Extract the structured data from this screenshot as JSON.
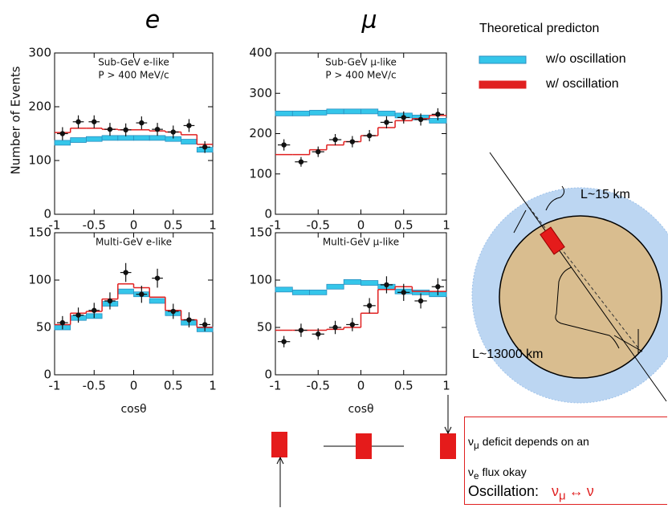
{
  "column_titles": [
    "e",
    "μ"
  ],
  "legend_title": "Theoretical predicton",
  "chart_data": [
    {
      "type": "histogram",
      "title": "Sub-GeV e-like",
      "subtitle": "P > 400 MeV/c",
      "ylabel": "Number of Events",
      "bins": [
        -1,
        -0.8,
        -0.6,
        -0.4,
        -0.2,
        0,
        0.2,
        0.4,
        0.6,
        0.8,
        1
      ],
      "xlim": [
        -1,
        1
      ],
      "xticks": [
        -1,
        -0.5,
        0,
        0.5,
        1
      ],
      "ylim": [
        0,
        300
      ],
      "yticks": [
        0,
        100,
        200,
        300
      ],
      "series": [
        {
          "name": "w/o oscillation",
          "color": "#35c6ea",
          "style": "band",
          "values": [
            133,
            138,
            140,
            142,
            142,
            142,
            142,
            140,
            135,
            120
          ]
        },
        {
          "name": "w/ oscillation",
          "color": "#e02020",
          "style": "line",
          "values": [
            152,
            160,
            160,
            158,
            157,
            157,
            155,
            153,
            148,
            130
          ]
        }
      ],
      "points": {
        "color": "#111111",
        "values": [
          150,
          172,
          172,
          158,
          157,
          170,
          158,
          153,
          165,
          125
        ],
        "errors": [
          12,
          12,
          12,
          12,
          12,
          12,
          12,
          12,
          12,
          11
        ]
      }
    },
    {
      "type": "histogram",
      "title": "Sub-GeV μ-like",
      "subtitle": "P > 400 MeV/c",
      "bins": [
        -1,
        -0.8,
        -0.6,
        -0.4,
        -0.2,
        0,
        0.2,
        0.4,
        0.6,
        0.8,
        1
      ],
      "xlim": [
        -1,
        1
      ],
      "xticks": [
        -1,
        -0.5,
        0,
        0.5,
        1
      ],
      "ylim": [
        0,
        400
      ],
      "yticks": [
        0,
        100,
        200,
        300,
        400
      ],
      "series": [
        {
          "name": "w/o oscillation",
          "color": "#35c6ea",
          "style": "band",
          "values": [
            250,
            250,
            252,
            255,
            255,
            255,
            250,
            245,
            240,
            232
          ]
        },
        {
          "name": "w/ oscillation",
          "color": "#e02020",
          "style": "line",
          "values": [
            148,
            148,
            160,
            172,
            180,
            195,
            215,
            232,
            237,
            245
          ]
        }
      ],
      "points": {
        "color": "#111111",
        "values": [
          172,
          130,
          155,
          185,
          180,
          195,
          228,
          240,
          235,
          248
        ],
        "errors": [
          14,
          12,
          13,
          14,
          14,
          14,
          15,
          15,
          15,
          15
        ]
      }
    },
    {
      "type": "histogram",
      "title": "Multi-GeV e-like",
      "xlabel": "cosθ",
      "bins": [
        -1,
        -0.8,
        -0.6,
        -0.4,
        -0.2,
        0,
        0.2,
        0.4,
        0.6,
        0.8,
        1
      ],
      "xlim": [
        -1,
        1
      ],
      "xticks": [
        -1,
        -0.5,
        0,
        0.5,
        1
      ],
      "ylim": [
        0,
        150
      ],
      "yticks": [
        0,
        50,
        100,
        150
      ],
      "series": [
        {
          "name": "w/o oscillation",
          "color": "#35c6ea",
          "style": "band",
          "values": [
            50,
            60,
            62,
            75,
            88,
            85,
            78,
            65,
            55,
            48
          ]
        },
        {
          "name": "w/ oscillation",
          "color": "#e02020",
          "style": "line",
          "values": [
            53,
            65,
            67,
            80,
            96,
            92,
            82,
            68,
            58,
            50
          ]
        }
      ],
      "points": {
        "color": "#111111",
        "values": [
          55,
          63,
          68,
          78,
          108,
          85,
          102,
          67,
          58,
          53
        ],
        "errors": [
          7,
          8,
          8,
          9,
          10,
          9,
          10,
          8,
          8,
          7
        ]
      }
    },
    {
      "type": "histogram",
      "title": "Multi-GeV μ-like",
      "xlabel": "cosθ",
      "bins": [
        -1,
        -0.8,
        -0.6,
        -0.4,
        -0.2,
        0,
        0.2,
        0.4,
        0.6,
        0.8,
        1
      ],
      "xlim": [
        -1,
        1
      ],
      "xticks": [
        -1,
        -0.5,
        0,
        0.5,
        1
      ],
      "ylim": [
        0,
        150
      ],
      "yticks": [
        0,
        50,
        100,
        150
      ],
      "series": [
        {
          "name": "w/o oscillation",
          "color": "#35c6ea",
          "style": "band",
          "values": [
            90,
            87,
            87,
            93,
            98,
            97,
            93,
            88,
            87,
            85
          ]
        },
        {
          "name": "w/ oscillation",
          "color": "#e02020",
          "style": "line",
          "values": [
            47,
            47,
            47,
            48,
            50,
            65,
            90,
            93,
            88,
            88
          ]
        }
      ],
      "points": {
        "color": "#111111",
        "values": [
          35,
          47,
          43,
          50,
          53,
          73,
          95,
          87,
          78,
          93
        ],
        "errors": [
          6,
          7,
          6,
          7,
          7,
          8,
          9,
          9,
          8,
          9
        ]
      }
    }
  ],
  "diagram": {
    "short_path": "L~15 km",
    "long_path": "L~13000 km"
  },
  "notes": {
    "line1": {
      "symbol": "ν",
      "sub": "μ",
      "text": "deficit depends on an"
    },
    "line2": {
      "symbol": "ν",
      "sub": "e",
      "text": "flux okay"
    },
    "line3": {
      "label": "Oscillation:",
      "lhs": "ν",
      "lhs_sub": "μ",
      "arrow": "↔",
      "rhs": "ν"
    }
  }
}
